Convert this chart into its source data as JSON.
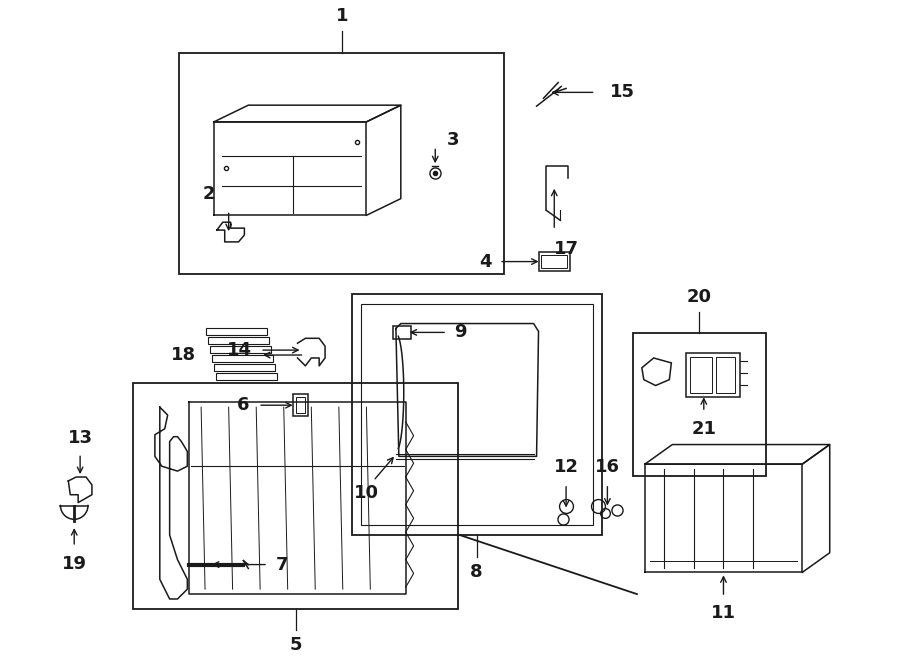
{
  "bg_color": "#ffffff",
  "lc": "#1a1a1a",
  "fig_w": 9.0,
  "fig_h": 6.61,
  "dpi": 100
}
